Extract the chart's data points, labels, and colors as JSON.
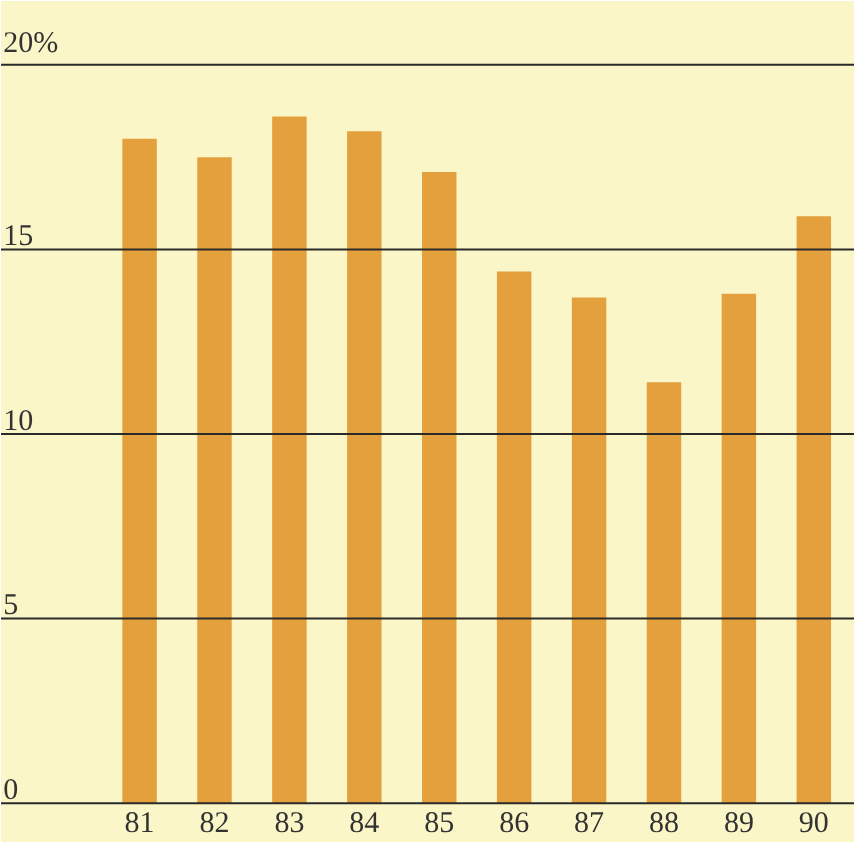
{
  "chart_data": {
    "type": "bar",
    "categories": [
      "81",
      "82",
      "83",
      "84",
      "85",
      "86",
      "87",
      "88",
      "89",
      "90"
    ],
    "values": [
      18.0,
      17.5,
      18.6,
      18.2,
      17.1,
      14.4,
      13.7,
      11.4,
      13.8,
      15.9
    ],
    "color": "#e3a03c",
    "ylim": [
      0,
      20
    ],
    "yticks": [
      0,
      5,
      10,
      15,
      {
        "value": 20,
        "label": "20%"
      }
    ],
    "grid": "y"
  }
}
